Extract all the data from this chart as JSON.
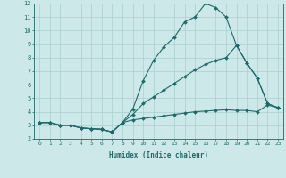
{
  "xlabel": "Humidex (Indice chaleur)",
  "xlim": [
    -0.5,
    23.5
  ],
  "ylim": [
    2,
    12
  ],
  "xticks": [
    0,
    1,
    2,
    3,
    4,
    5,
    6,
    7,
    8,
    9,
    10,
    11,
    12,
    13,
    14,
    15,
    16,
    17,
    18,
    19,
    20,
    21,
    22,
    23
  ],
  "yticks": [
    2,
    3,
    4,
    5,
    6,
    7,
    8,
    9,
    10,
    11,
    12
  ],
  "background_color": "#cce8e8",
  "grid_color": "#aacfcf",
  "line_color": "#1a6b6b",
  "line1_x": [
    0,
    1,
    2,
    3,
    4,
    5,
    6,
    7,
    8,
    9,
    10,
    11,
    12,
    13,
    14,
    15,
    16,
    17,
    18,
    19,
    20,
    21,
    22,
    23
  ],
  "line1_y": [
    3.2,
    3.2,
    3.0,
    3.0,
    2.8,
    2.75,
    2.7,
    2.5,
    3.2,
    4.2,
    6.3,
    7.8,
    8.8,
    9.5,
    10.65,
    11.0,
    12.0,
    11.7,
    11.0,
    8.9,
    7.6,
    6.5,
    4.6,
    4.3
  ],
  "line2_x": [
    0,
    1,
    2,
    3,
    4,
    5,
    6,
    7,
    8,
    9,
    10,
    11,
    12,
    13,
    14,
    15,
    16,
    17,
    18,
    19,
    20,
    21,
    22,
    23
  ],
  "line2_y": [
    3.2,
    3.2,
    3.0,
    3.0,
    2.8,
    2.75,
    2.7,
    2.5,
    3.2,
    3.8,
    4.6,
    5.1,
    5.6,
    6.1,
    6.6,
    7.1,
    7.5,
    7.8,
    8.0,
    8.9,
    7.6,
    6.5,
    4.6,
    4.3
  ],
  "line3_x": [
    0,
    1,
    2,
    3,
    4,
    5,
    6,
    7,
    8,
    9,
    10,
    11,
    12,
    13,
    14,
    15,
    16,
    17,
    18,
    19,
    20,
    21,
    22,
    23
  ],
  "line3_y": [
    3.2,
    3.2,
    3.0,
    3.0,
    2.8,
    2.75,
    2.7,
    2.5,
    3.2,
    3.4,
    3.5,
    3.6,
    3.7,
    3.8,
    3.9,
    4.0,
    4.05,
    4.1,
    4.15,
    4.1,
    4.1,
    4.0,
    4.5,
    4.3
  ]
}
